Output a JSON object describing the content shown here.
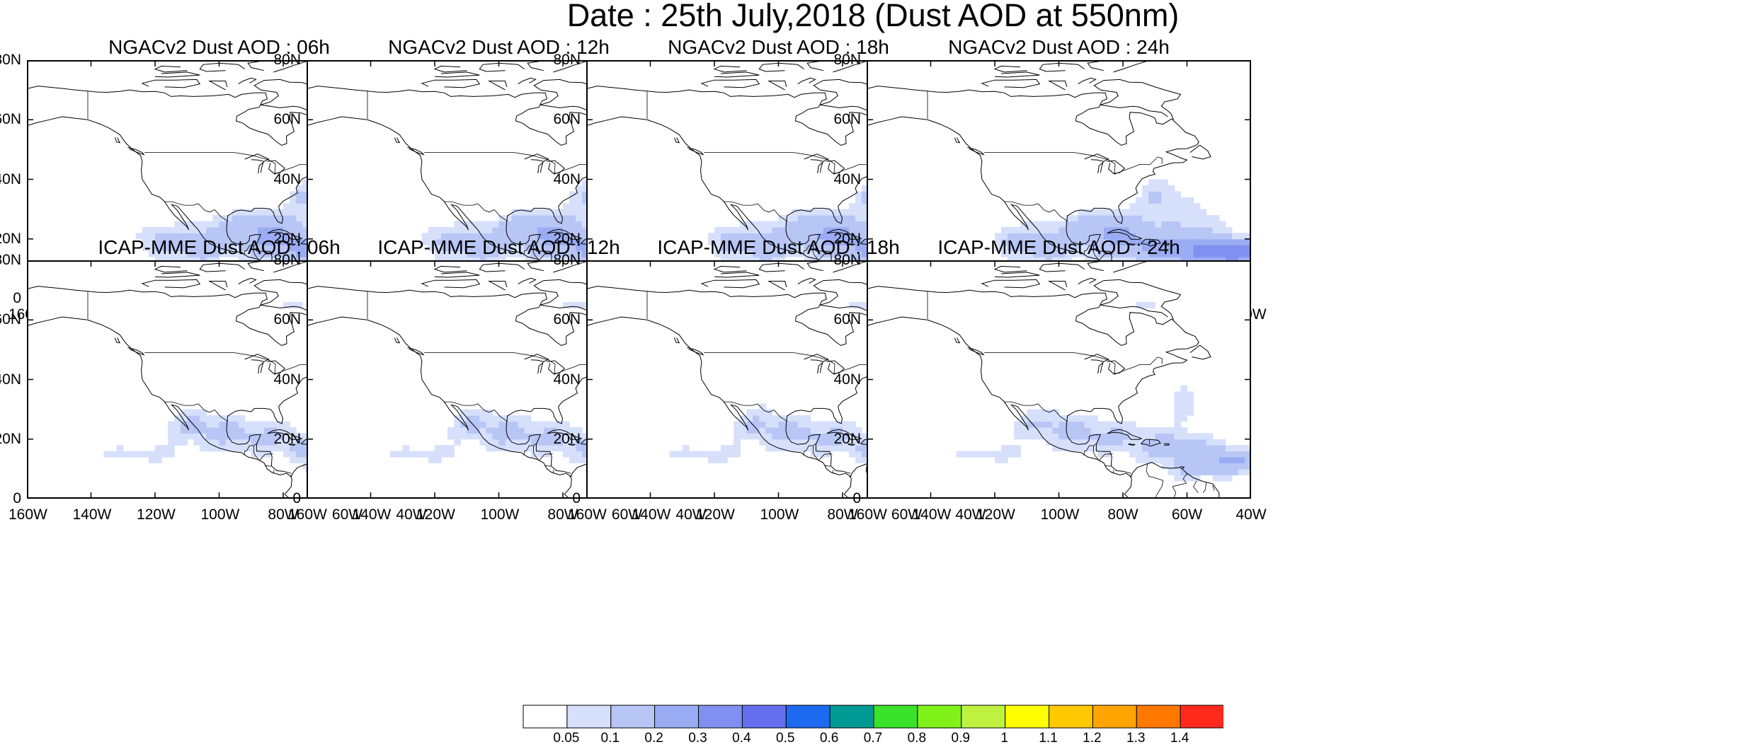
{
  "title": "Date : 25th July,2018 (Dust AOD at 550nm)",
  "lon_ticks": [
    "160W",
    "140W",
    "120W",
    "100W",
    "80W",
    "60W",
    "40W"
  ],
  "lat_ticks": [
    "80N",
    "60N",
    "40N",
    "20N",
    "0"
  ],
  "panels": [
    {
      "title": "NGACv2 Dust AOD : 06h",
      "model": "NGACv2",
      "hour": 6
    },
    {
      "title": "NGACv2 Dust AOD : 12h",
      "model": "NGACv2",
      "hour": 12
    },
    {
      "title": "NGACv2 Dust AOD : 18h",
      "model": "NGACv2",
      "hour": 18
    },
    {
      "title": "NGACv2 Dust AOD : 24h",
      "model": "NGACv2",
      "hour": 24
    },
    {
      "title": "ICAP-MME Dust AOD : 06h",
      "model": "ICAP-MME",
      "hour": 6
    },
    {
      "title": "ICAP-MME Dust AOD : 12h",
      "model": "ICAP-MME",
      "hour": 12
    },
    {
      "title": "ICAP-MME Dust AOD : 18h",
      "model": "ICAP-MME",
      "hour": 18
    },
    {
      "title": "ICAP-MME Dust AOD : 24h",
      "model": "ICAP-MME",
      "hour": 24
    }
  ],
  "colorbar": {
    "labels": [
      "0.05",
      "0.1",
      "0.2",
      "0.3",
      "0.4",
      "0.5",
      "0.6",
      "0.7",
      "0.8",
      "0.9",
      "1",
      "1.1",
      "1.2",
      "1.3",
      "1.4"
    ],
    "colors": [
      "#ffffff",
      "#d6e0fb",
      "#b8c6f6",
      "#9aacf3",
      "#8090f0",
      "#6670ee",
      "#1d6af0",
      "#009a94",
      "#3ae22a",
      "#80f21a",
      "#bff240",
      "#ffff00",
      "#ffc800",
      "#ffa400",
      "#ff7800",
      "#ff2a1c"
    ]
  }
}
